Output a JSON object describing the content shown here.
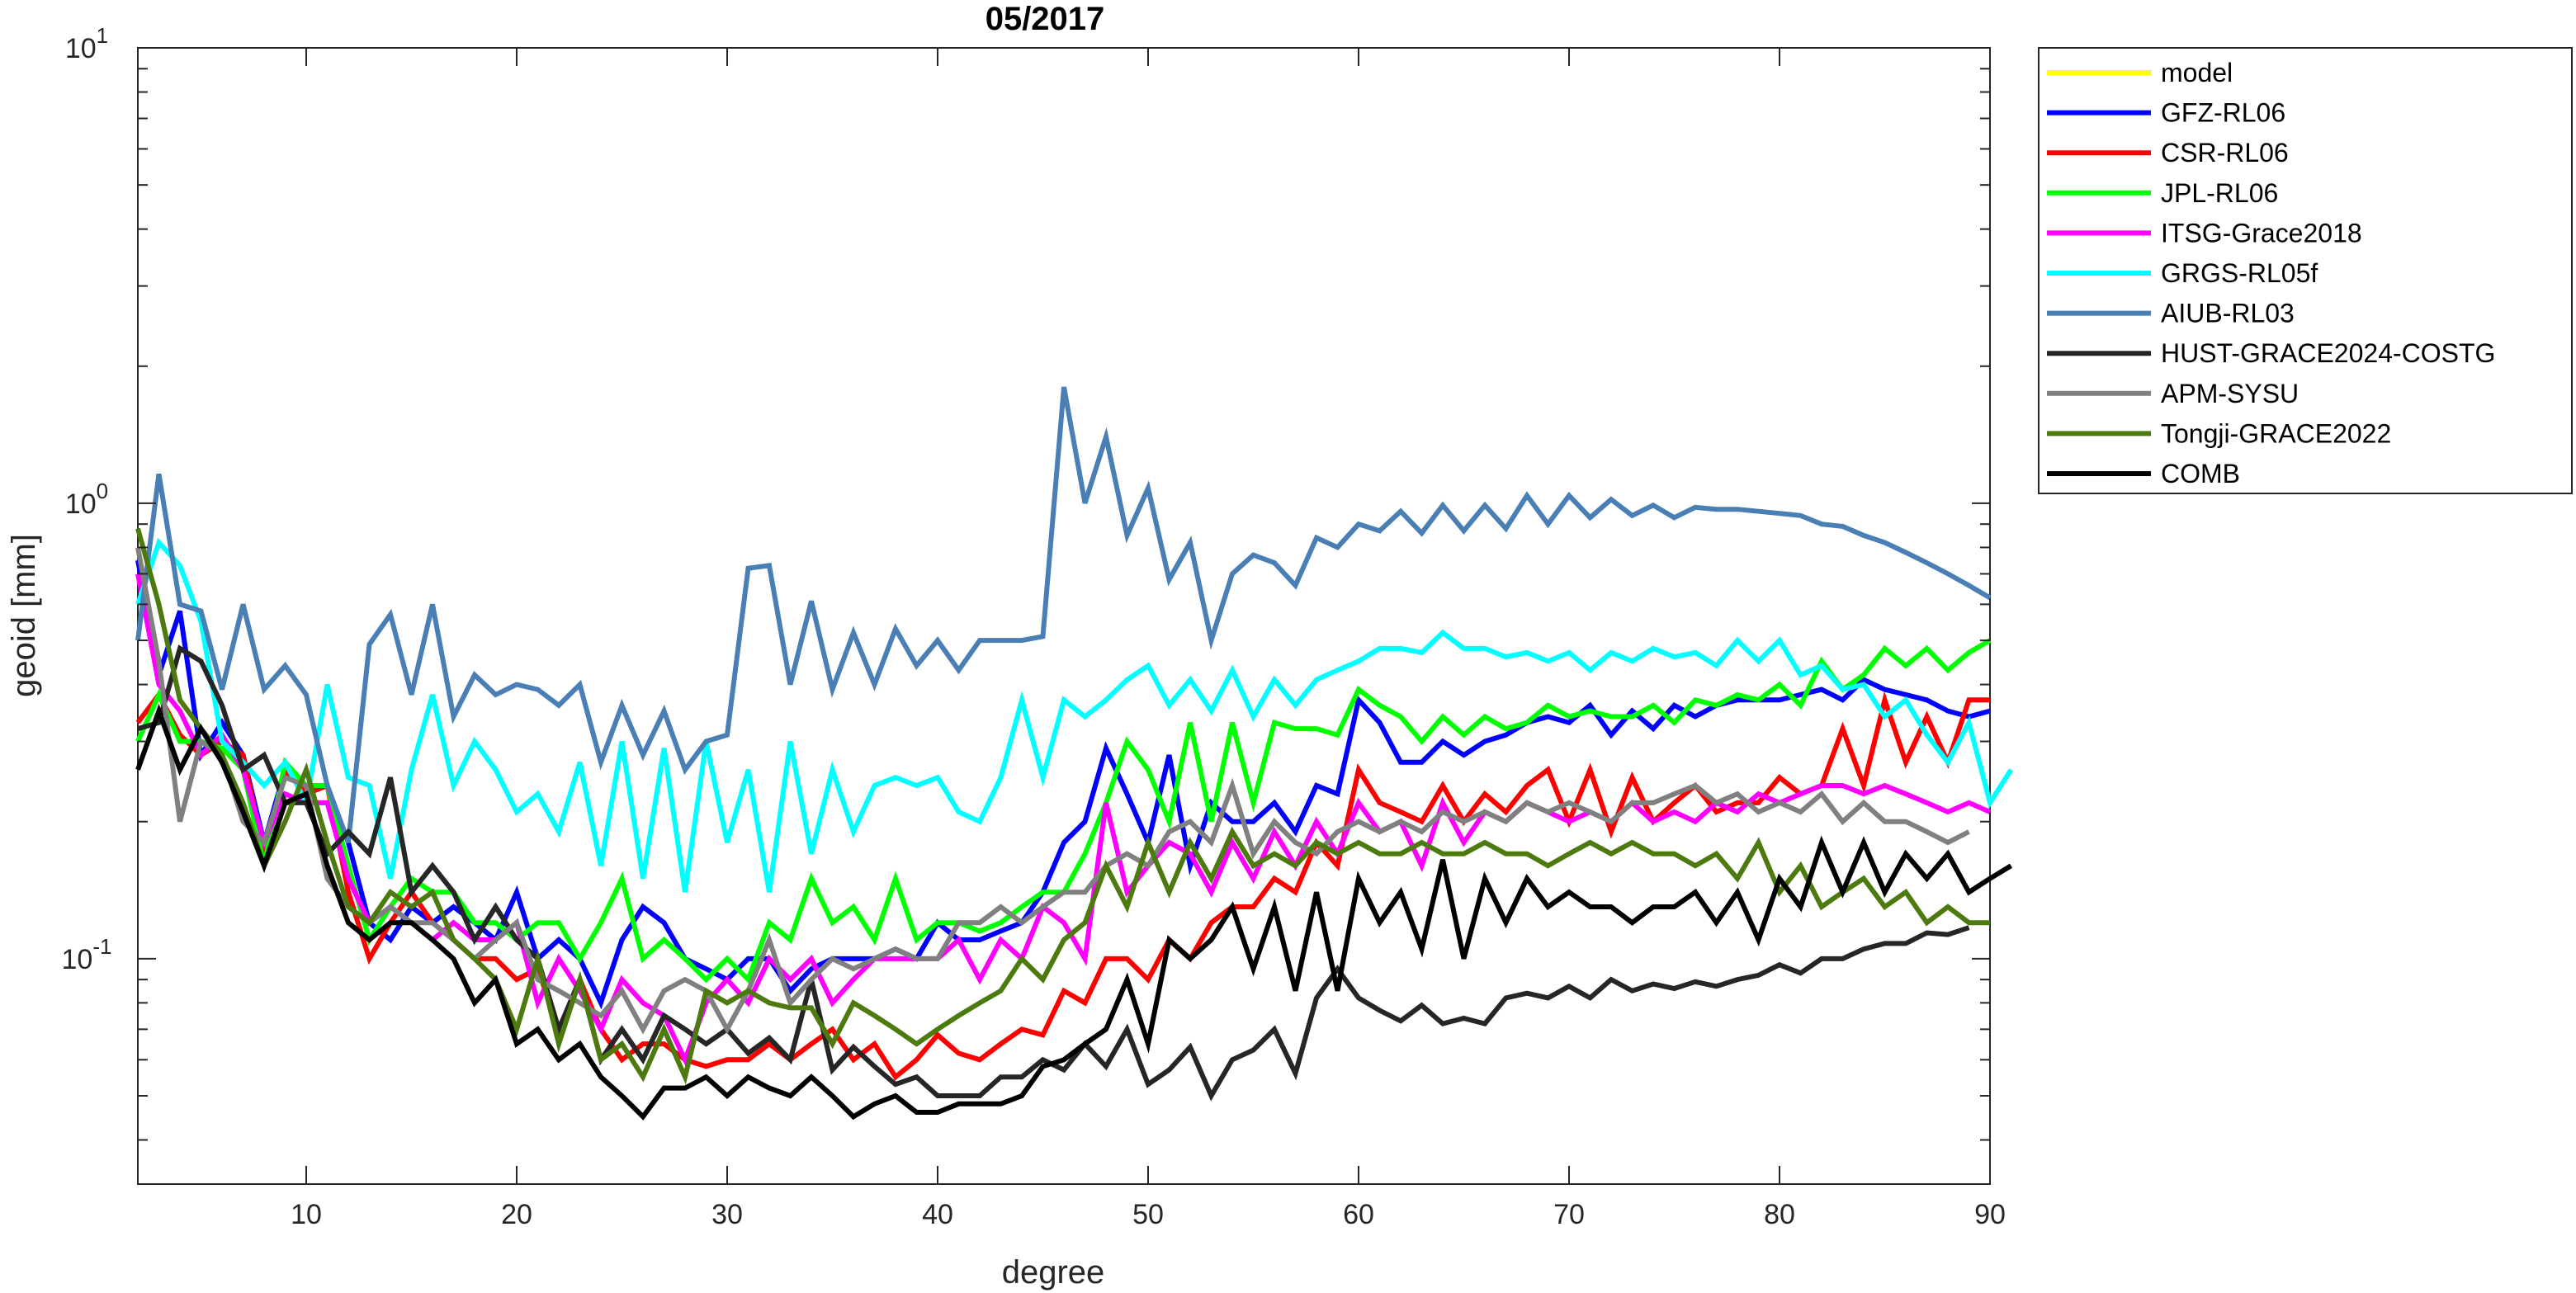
{
  "chart_data": {
    "type": "line",
    "title": "05/2017",
    "xlabel": "degree",
    "ylabel": "geoid [mm]",
    "xlim": [
      2,
      90
    ],
    "ylim": [
      0.032,
      10
    ],
    "yscale": "log",
    "grid": false,
    "legend_position": "outside-top-right",
    "x_ticks": [
      10,
      20,
      30,
      40,
      50,
      60,
      70,
      80,
      90
    ],
    "x_tick_labels": [
      "10",
      "20",
      "30",
      "40",
      "50",
      "60",
      "70",
      "80",
      "90"
    ],
    "y_ticks": [
      0.1,
      1,
      10
    ],
    "y_tick_labels": [
      {
        "base": "10",
        "exp": "-1"
      },
      {
        "base": "10",
        "exp": "0"
      },
      {
        "base": "10",
        "exp": "1"
      }
    ],
    "series": [
      {
        "name": "model",
        "color": "#FFFF00",
        "x_start": 2,
        "values": []
      },
      {
        "name": "GFZ-RL06",
        "color": "#0000FF",
        "x_start": 2,
        "values": [
          0.75,
          0.42,
          0.58,
          0.28,
          0.33,
          0.28,
          0.18,
          0.26,
          0.23,
          0.24,
          0.18,
          0.12,
          0.11,
          0.13,
          0.12,
          0.13,
          0.12,
          0.11,
          0.14,
          0.1,
          0.11,
          0.1,
          0.08,
          0.11,
          0.13,
          0.12,
          0.1,
          0.095,
          0.09,
          0.1,
          0.1,
          0.085,
          0.095,
          0.1,
          0.1,
          0.1,
          0.105,
          0.1,
          0.12,
          0.11,
          0.11,
          0.115,
          0.12,
          0.14,
          0.18,
          0.2,
          0.29,
          0.23,
          0.18,
          0.28,
          0.16,
          0.22,
          0.2,
          0.2,
          0.22,
          0.19,
          0.24,
          0.23,
          0.37,
          0.33,
          0.27,
          0.27,
          0.3,
          0.28,
          0.3,
          0.31,
          0.33,
          0.34,
          0.33,
          0.36,
          0.31,
          0.35,
          0.32,
          0.36,
          0.34,
          0.36,
          0.37,
          0.37,
          0.37,
          0.38,
          0.39,
          0.37,
          0.41,
          0.39,
          0.38,
          0.37,
          0.35,
          0.34,
          0.35
        ]
      },
      {
        "name": "CSR-RL06",
        "color": "#FF0000",
        "x_start": 2,
        "values": [
          0.33,
          0.38,
          0.31,
          0.28,
          0.3,
          0.28,
          0.17,
          0.26,
          0.23,
          0.24,
          0.14,
          0.1,
          0.12,
          0.14,
          0.12,
          0.11,
          0.1,
          0.1,
          0.09,
          0.095,
          0.07,
          0.09,
          0.07,
          0.06,
          0.065,
          0.065,
          0.06,
          0.058,
          0.06,
          0.06,
          0.065,
          0.06,
          0.065,
          0.07,
          0.06,
          0.065,
          0.055,
          0.06,
          0.068,
          0.062,
          0.06,
          0.065,
          0.07,
          0.068,
          0.085,
          0.08,
          0.1,
          0.1,
          0.09,
          0.11,
          0.1,
          0.12,
          0.13,
          0.13,
          0.15,
          0.14,
          0.18,
          0.16,
          0.26,
          0.22,
          0.21,
          0.2,
          0.24,
          0.2,
          0.23,
          0.21,
          0.24,
          0.26,
          0.2,
          0.26,
          0.19,
          0.25,
          0.2,
          0.22,
          0.24,
          0.21,
          0.22,
          0.22,
          0.25,
          0.23,
          0.24,
          0.32,
          0.24,
          0.37,
          0.27,
          0.34,
          0.27,
          0.37,
          0.37
        ]
      },
      {
        "name": "JPL-RL06",
        "color": "#00FF00",
        "x_start": 2,
        "values": [
          0.3,
          0.38,
          0.3,
          0.3,
          0.29,
          0.26,
          0.16,
          0.27,
          0.24,
          0.24,
          0.16,
          0.11,
          0.13,
          0.15,
          0.14,
          0.14,
          0.12,
          0.12,
          0.11,
          0.12,
          0.12,
          0.1,
          0.12,
          0.15,
          0.1,
          0.11,
          0.1,
          0.09,
          0.1,
          0.09,
          0.12,
          0.11,
          0.15,
          0.12,
          0.13,
          0.11,
          0.15,
          0.11,
          0.12,
          0.12,
          0.115,
          0.12,
          0.13,
          0.14,
          0.14,
          0.17,
          0.22,
          0.3,
          0.26,
          0.2,
          0.33,
          0.2,
          0.33,
          0.22,
          0.33,
          0.32,
          0.32,
          0.31,
          0.39,
          0.36,
          0.34,
          0.3,
          0.34,
          0.31,
          0.34,
          0.32,
          0.33,
          0.36,
          0.34,
          0.35,
          0.34,
          0.34,
          0.36,
          0.33,
          0.37,
          0.36,
          0.38,
          0.37,
          0.4,
          0.36,
          0.45,
          0.39,
          0.42,
          0.48,
          0.44,
          0.48,
          0.43,
          0.47,
          0.5
        ]
      },
      {
        "name": "ITSG-Grace2018",
        "color": "#FF00FF",
        "x_start": 2,
        "values": [
          0.7,
          0.4,
          0.35,
          0.28,
          0.31,
          0.26,
          0.18,
          0.23,
          0.22,
          0.22,
          0.15,
          0.12,
          0.13,
          0.12,
          0.11,
          0.12,
          0.11,
          0.11,
          0.12,
          0.08,
          0.1,
          0.085,
          0.07,
          0.09,
          0.08,
          0.075,
          0.06,
          0.08,
          0.09,
          0.08,
          0.1,
          0.09,
          0.1,
          0.08,
          0.09,
          0.1,
          0.1,
          0.1,
          0.1,
          0.11,
          0.09,
          0.11,
          0.1,
          0.13,
          0.12,
          0.1,
          0.22,
          0.14,
          0.16,
          0.18,
          0.17,
          0.14,
          0.18,
          0.15,
          0.19,
          0.16,
          0.2,
          0.17,
          0.22,
          0.19,
          0.2,
          0.16,
          0.22,
          0.18,
          0.21,
          0.2,
          0.22,
          0.21,
          0.2,
          0.21,
          0.2,
          0.22,
          0.2,
          0.21,
          0.2,
          0.22,
          0.21,
          0.23,
          0.22,
          0.23,
          0.24,
          0.24,
          0.23,
          0.24,
          0.23,
          0.22,
          0.21,
          0.22,
          0.21
        ]
      },
      {
        "name": "GRGS-RL05f",
        "color": "#00FFFF",
        "x_start": 2,
        "values": [
          0.6,
          0.82,
          0.73,
          0.55,
          0.3,
          0.27,
          0.24,
          0.27,
          0.22,
          0.4,
          0.25,
          0.24,
          0.15,
          0.26,
          0.38,
          0.24,
          0.3,
          0.26,
          0.21,
          0.23,
          0.19,
          0.27,
          0.16,
          0.3,
          0.15,
          0.29,
          0.14,
          0.3,
          0.18,
          0.26,
          0.14,
          0.3,
          0.17,
          0.26,
          0.19,
          0.24,
          0.25,
          0.24,
          0.25,
          0.21,
          0.2,
          0.25,
          0.37,
          0.25,
          0.37,
          0.34,
          0.37,
          0.41,
          0.44,
          0.36,
          0.41,
          0.35,
          0.43,
          0.34,
          0.41,
          0.36,
          0.41,
          0.43,
          0.45,
          0.48,
          0.48,
          0.47,
          0.52,
          0.48,
          0.48,
          0.46,
          0.47,
          0.45,
          0.47,
          0.43,
          0.47,
          0.45,
          0.48,
          0.46,
          0.47,
          0.44,
          0.5,
          0.45,
          0.5,
          0.42,
          0.44,
          0.39,
          0.4,
          0.34,
          0.37,
          0.31,
          0.27,
          0.33,
          0.22,
          0.26
        ]
      },
      {
        "name": "AIUB-RL03",
        "color": "#4A7FB5",
        "x_start": 2,
        "values": [
          0.5,
          1.16,
          0.6,
          0.58,
          0.39,
          0.6,
          0.39,
          0.44,
          0.38,
          0.24,
          0.18,
          0.49,
          0.57,
          0.38,
          0.6,
          0.34,
          0.42,
          0.38,
          0.4,
          0.39,
          0.36,
          0.4,
          0.27,
          0.36,
          0.28,
          0.35,
          0.26,
          0.3,
          0.31,
          0.72,
          0.73,
          0.4,
          0.61,
          0.39,
          0.52,
          0.4,
          0.53,
          0.44,
          0.5,
          0.43,
          0.5,
          0.5,
          0.5,
          0.51,
          1.8,
          1.0,
          1.4,
          0.85,
          1.08,
          0.68,
          0.82,
          0.5,
          0.7,
          0.77,
          0.74,
          0.66,
          0.84,
          0.8,
          0.9,
          0.87,
          0.96,
          0.86,
          0.99,
          0.87,
          0.99,
          0.88,
          1.04,
          0.9,
          1.04,
          0.93,
          1.02,
          0.94,
          0.99,
          0.93,
          0.98,
          0.97,
          0.97,
          0.96,
          0.95,
          0.94,
          0.9,
          0.89,
          0.85,
          0.82,
          0.78,
          0.74,
          0.7,
          0.66,
          0.62
        ]
      },
      {
        "name": "HUST-GRACE2024-COSTG",
        "color": "#262626",
        "x_start": 2,
        "values": [
          0.32,
          0.33,
          0.48,
          0.45,
          0.36,
          0.26,
          0.28,
          0.22,
          0.22,
          0.17,
          0.19,
          0.17,
          0.25,
          0.14,
          0.16,
          0.14,
          0.11,
          0.13,
          0.11,
          0.1,
          0.07,
          0.09,
          0.06,
          0.07,
          0.06,
          0.075,
          0.07,
          0.065,
          0.07,
          0.062,
          0.067,
          0.06,
          0.09,
          0.057,
          0.064,
          0.058,
          0.053,
          0.055,
          0.05,
          0.05,
          0.05,
          0.055,
          0.055,
          0.06,
          0.057,
          0.065,
          0.058,
          0.07,
          0.053,
          0.057,
          0.064,
          0.05,
          0.06,
          0.063,
          0.07,
          0.056,
          0.082,
          0.095,
          0.082,
          0.077,
          0.073,
          0.079,
          0.072,
          0.074,
          0.072,
          0.082,
          0.084,
          0.082,
          0.087,
          0.082,
          0.09,
          0.085,
          0.088,
          0.086,
          0.089,
          0.087,
          0.09,
          0.092,
          0.097,
          0.093,
          0.1,
          0.1,
          0.105,
          0.108,
          0.108,
          0.114,
          0.113,
          0.117
        ]
      },
      {
        "name": "APM-SYSU",
        "color": "#808080",
        "x_start": 2,
        "values": [
          0.8,
          0.45,
          0.2,
          0.3,
          0.28,
          0.2,
          0.18,
          0.25,
          0.24,
          0.15,
          0.13,
          0.12,
          0.13,
          0.12,
          0.12,
          0.11,
          0.1,
          0.11,
          0.12,
          0.09,
          0.085,
          0.08,
          0.075,
          0.085,
          0.07,
          0.085,
          0.09,
          0.085,
          0.07,
          0.085,
          0.11,
          0.08,
          0.09,
          0.1,
          0.095,
          0.1,
          0.105,
          0.1,
          0.1,
          0.12,
          0.12,
          0.13,
          0.12,
          0.13,
          0.14,
          0.14,
          0.16,
          0.17,
          0.16,
          0.19,
          0.2,
          0.18,
          0.24,
          0.17,
          0.2,
          0.18,
          0.17,
          0.19,
          0.2,
          0.19,
          0.2,
          0.19,
          0.21,
          0.2,
          0.21,
          0.2,
          0.22,
          0.21,
          0.22,
          0.21,
          0.2,
          0.22,
          0.22,
          0.23,
          0.24,
          0.22,
          0.23,
          0.21,
          0.22,
          0.21,
          0.23,
          0.2,
          0.22,
          0.2,
          0.2,
          0.19,
          0.18,
          0.19
        ]
      },
      {
        "name": "Tongji-GRACE2022",
        "color": "#4D7A0F",
        "x_start": 2,
        "values": [
          0.88,
          0.6,
          0.37,
          0.32,
          0.28,
          0.22,
          0.16,
          0.2,
          0.26,
          0.18,
          0.13,
          0.12,
          0.14,
          0.13,
          0.14,
          0.11,
          0.1,
          0.09,
          0.07,
          0.1,
          0.065,
          0.09,
          0.06,
          0.065,
          0.055,
          0.07,
          0.055,
          0.085,
          0.08,
          0.085,
          0.08,
          0.078,
          0.078,
          0.065,
          0.08,
          0.075,
          0.07,
          0.065,
          0.07,
          0.075,
          0.08,
          0.085,
          0.1,
          0.09,
          0.11,
          0.12,
          0.16,
          0.13,
          0.18,
          0.14,
          0.18,
          0.15,
          0.19,
          0.16,
          0.17,
          0.16,
          0.18,
          0.17,
          0.18,
          0.17,
          0.17,
          0.18,
          0.17,
          0.17,
          0.18,
          0.17,
          0.17,
          0.16,
          0.17,
          0.18,
          0.17,
          0.18,
          0.17,
          0.17,
          0.16,
          0.17,
          0.15,
          0.18,
          0.14,
          0.16,
          0.13,
          0.14,
          0.15,
          0.13,
          0.14,
          0.12,
          0.13,
          0.12,
          0.12
        ]
      },
      {
        "name": "COMB",
        "color": "#000000",
        "x_start": 2,
        "values": [
          0.26,
          0.35,
          0.26,
          0.32,
          0.27,
          0.21,
          0.16,
          0.22,
          0.23,
          0.16,
          0.12,
          0.11,
          0.12,
          0.12,
          0.11,
          0.1,
          0.08,
          0.09,
          0.065,
          0.07,
          0.06,
          0.065,
          0.055,
          0.05,
          0.045,
          0.052,
          0.052,
          0.055,
          0.05,
          0.055,
          0.052,
          0.05,
          0.055,
          0.05,
          0.045,
          0.048,
          0.05,
          0.046,
          0.046,
          0.048,
          0.048,
          0.048,
          0.05,
          0.058,
          0.06,
          0.065,
          0.07,
          0.09,
          0.065,
          0.11,
          0.1,
          0.11,
          0.13,
          0.095,
          0.13,
          0.085,
          0.14,
          0.085,
          0.15,
          0.12,
          0.14,
          0.105,
          0.165,
          0.1,
          0.15,
          0.12,
          0.15,
          0.13,
          0.14,
          0.13,
          0.13,
          0.12,
          0.13,
          0.13,
          0.14,
          0.12,
          0.14,
          0.11,
          0.15,
          0.13,
          0.18,
          0.14,
          0.18,
          0.14,
          0.17,
          0.15,
          0.17,
          0.14,
          0.15,
          0.16
        ]
      }
    ]
  }
}
